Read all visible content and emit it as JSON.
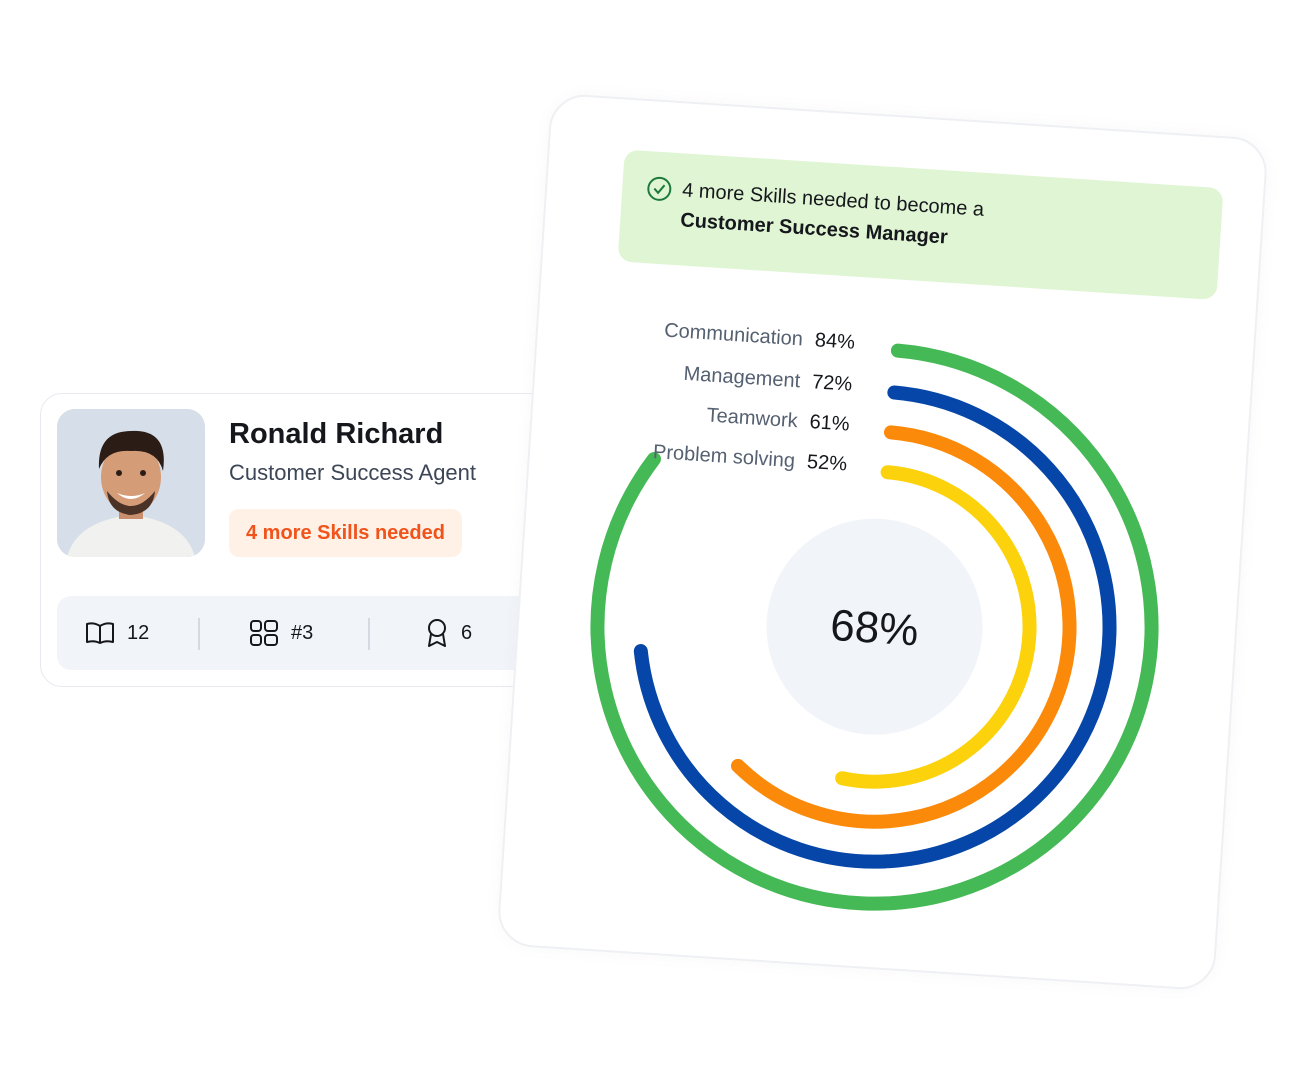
{
  "profile": {
    "name": "Ronald Richard",
    "role": "Customer Success Agent",
    "badge": "4 more Skills needed",
    "stats": [
      {
        "icon": "book-icon",
        "value": "12"
      },
      {
        "icon": "grid-icon",
        "value": "#3"
      },
      {
        "icon": "award-icon",
        "value": "6"
      }
    ]
  },
  "banner": {
    "icon": "check-circle-icon",
    "text_prefix": "4 more Skills needed to become a ",
    "text_bold": "Customer Success Manager"
  },
  "colors": {
    "green": "#45b955",
    "blue": "#0546a8",
    "orange": "#fb8a0b",
    "yellow": "#fcd20c",
    "center": "#f1f4f8"
  },
  "chart_data": {
    "type": "radial-bar",
    "center_label": "68%",
    "categories": [
      "Communication",
      "Management",
      "Teamwork",
      "Problem solving"
    ],
    "values": [
      84,
      72,
      61,
      52
    ],
    "value_labels": [
      "84%",
      "72%",
      "61%",
      "52%"
    ],
    "max": 100,
    "series_colors": [
      "#45b955",
      "#0546a8",
      "#fb8a0b",
      "#fcd20c"
    ]
  }
}
